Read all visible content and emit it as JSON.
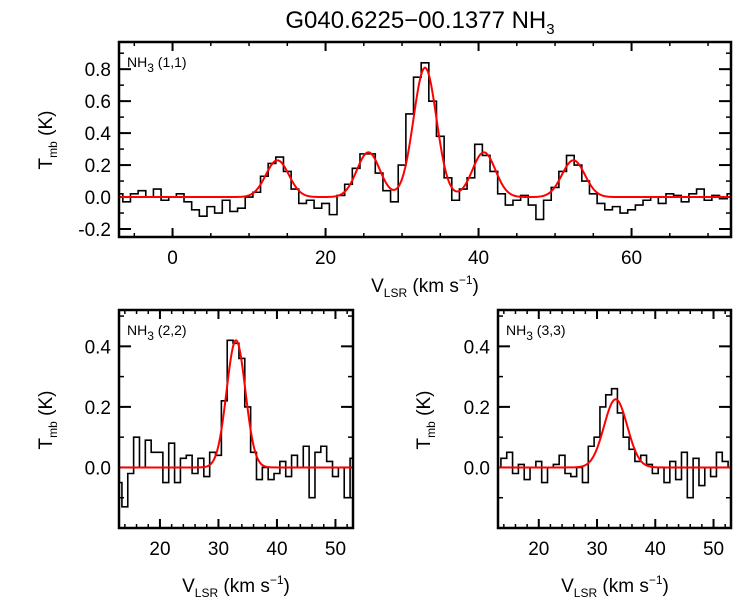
{
  "chart_data": {
    "title": {
      "main": "G040.6225−00.1377 NH",
      "sub": "3"
    },
    "type": "line",
    "colors": {
      "observed": "#000000",
      "fit": "#ff0000"
    },
    "ylabel": {
      "main": "T",
      "sub": "mb",
      "rest": " (K)"
    },
    "xlabel": {
      "main": "V",
      "sub": "LSR",
      "rest": " (km s",
      "sup": "−1",
      "end": ")"
    },
    "panels": [
      {
        "label": {
          "main": "NH",
          "sub": "3",
          "rest": " (1,1)"
        },
        "xlim": [
          -7,
          73
        ],
        "ylim": [
          -0.25,
          0.97
        ],
        "xticks": [
          0,
          20,
          40,
          60
        ],
        "xtick_labels": [
          "0",
          "20",
          "40",
          "60"
        ],
        "yticks": [
          -0.2,
          0.0,
          0.2,
          0.4,
          0.6,
          0.8
        ],
        "ytick_labels": [
          "-0.2",
          "0.0",
          "0.2",
          "0.4",
          "0.6",
          "0.8"
        ],
        "x_minor": 5,
        "y_minor": 0.1,
        "observed": {
          "x_start": -7,
          "dx": 1,
          "y": [
            0.02,
            -0.03,
            0.02,
            0.04,
            0.0,
            0.05,
            -0.02,
            0.0,
            0.02,
            -0.03,
            -0.08,
            -0.12,
            -0.06,
            -0.1,
            -0.02,
            -0.09,
            -0.07,
            0.0,
            0.03,
            0.13,
            0.21,
            0.25,
            0.16,
            0.05,
            -0.04,
            -0.02,
            -0.07,
            -0.04,
            -0.11,
            0.01,
            0.08,
            0.18,
            0.27,
            0.27,
            0.15,
            0.04,
            -0.03,
            0.2,
            0.52,
            0.75,
            0.84,
            0.6,
            0.38,
            0.12,
            -0.02,
            0.05,
            0.12,
            0.33,
            0.26,
            0.16,
            0.02,
            -0.05,
            -0.02,
            0.01,
            -0.05,
            -0.14,
            -0.02,
            0.06,
            0.16,
            0.26,
            0.2,
            0.1,
            0.02,
            -0.04,
            -0.08,
            -0.06,
            -0.1,
            -0.08,
            -0.05,
            -0.02,
            0.0,
            -0.04,
            0.02,
            0.01,
            -0.03,
            0.02,
            0.05,
            -0.02,
            0.01,
            -0.01,
            0.02
          ]
        },
        "fit_components": [
          {
            "center": 13.7,
            "amplitude": 0.23,
            "sigma": 1.5
          },
          {
            "center": 25.6,
            "amplitude": 0.28,
            "sigma": 1.5
          },
          {
            "center": 33.0,
            "amplitude": 0.81,
            "sigma": 1.5
          },
          {
            "center": 40.7,
            "amplitude": 0.28,
            "sigma": 1.5
          },
          {
            "center": 52.4,
            "amplitude": 0.23,
            "sigma": 1.5
          }
        ]
      },
      {
        "label": {
          "main": "NH",
          "sub": "3",
          "rest": " (2,2)"
        },
        "xlim": [
          13,
          53
        ],
        "ylim": [
          -0.2,
          0.52
        ],
        "xticks": [
          20,
          30,
          40,
          50
        ],
        "xtick_labels": [
          "20",
          "30",
          "40",
          "50"
        ],
        "yticks": [
          0.0,
          0.2,
          0.4
        ],
        "ytick_labels": [
          "0.0",
          "0.2",
          "0.4"
        ],
        "x_minor": 2,
        "y_minor": 0.1,
        "observed": {
          "x_start": 13,
          "dx": 1,
          "y": [
            -0.05,
            -0.13,
            -0.02,
            0.1,
            0.0,
            0.09,
            0.05,
            0.05,
            -0.05,
            0.08,
            -0.05,
            0.03,
            0.04,
            -0.02,
            0.03,
            -0.03,
            0.05,
            0.04,
            0.22,
            0.42,
            0.41,
            0.36,
            0.2,
            0.05,
            -0.04,
            0.0,
            -0.04,
            -0.02,
            0.02,
            -0.03,
            0.04,
            0.0,
            0.07,
            -0.1,
            0.05,
            0.07,
            0.02,
            -0.03,
            0.0,
            -0.1,
            0.03
          ]
        },
        "fit_components": [
          {
            "center": 33.0,
            "amplitude": 0.42,
            "sigma": 1.6
          }
        ]
      },
      {
        "label": {
          "main": "NH",
          "sub": "3",
          "rest": " (3,3)"
        },
        "xlim": [
          13,
          53
        ],
        "ylim": [
          -0.2,
          0.52
        ],
        "xticks": [
          20,
          30,
          40,
          50
        ],
        "xtick_labels": [
          "20",
          "30",
          "40",
          "50"
        ],
        "yticks": [
          0.0,
          0.2,
          0.4
        ],
        "ytick_labels": [
          "0.0",
          "0.2",
          "0.4"
        ],
        "x_minor": 2,
        "y_minor": 0.1,
        "observed": {
          "x_start": 13,
          "dx": 1,
          "y": [
            0.0,
            0.03,
            0.05,
            -0.02,
            0.01,
            -0.04,
            0.0,
            0.02,
            -0.05,
            0.0,
            0.01,
            0.04,
            -0.02,
            -0.03,
            0.0,
            -0.05,
            0.07,
            0.1,
            0.2,
            0.24,
            0.26,
            0.18,
            0.1,
            0.06,
            0.02,
            0.04,
            0.01,
            -0.02,
            0.0,
            -0.05,
            0.02,
            -0.04,
            0.05,
            -0.1,
            0.03,
            -0.06,
            0.0,
            -0.03,
            0.05,
            0.02,
            0.0
          ]
        },
        "fit_components": [
          {
            "center": 33.2,
            "amplitude": 0.225,
            "sigma": 2.0
          }
        ]
      }
    ]
  }
}
